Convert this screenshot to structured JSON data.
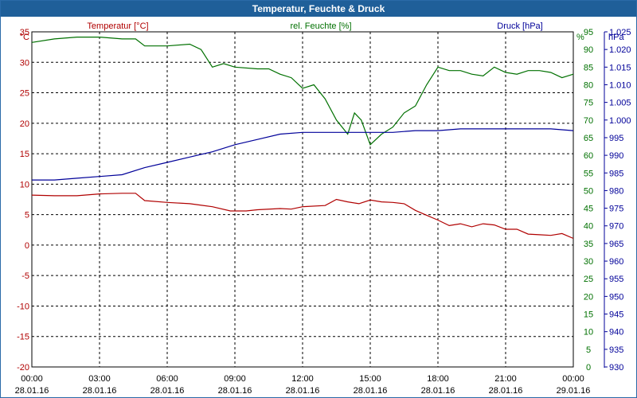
{
  "window": {
    "title": "Temperatur, Feuchte & Druck"
  },
  "chart_data": {
    "type": "line",
    "title": "Temperatur, Feuchte & Druck",
    "grid": true,
    "x_ticks": [
      {
        "time": "00:00",
        "date": "28.01.16"
      },
      {
        "time": "03:00",
        "date": "28.01.16"
      },
      {
        "time": "06:00",
        "date": "28.01.16"
      },
      {
        "time": "09:00",
        "date": "28.01.16"
      },
      {
        "time": "12:00",
        "date": "28.01.16"
      },
      {
        "time": "15:00",
        "date": "28.01.16"
      },
      {
        "time": "18:00",
        "date": "28.01.16"
      },
      {
        "time": "21:00",
        "date": "28.01.16"
      },
      {
        "time": "00:00",
        "date": "29.01.16"
      }
    ],
    "axes": {
      "temperature": {
        "label": "Temperatur [°C]",
        "unit": "°C",
        "min": -20,
        "max": 35,
        "ticks": [
          35,
          30,
          25,
          20,
          15,
          10,
          5,
          0,
          -5,
          -10,
          -15,
          -20
        ],
        "color": "#b00000"
      },
      "humidity": {
        "label": "rel. Feuchte [%]",
        "unit": "%",
        "min": 0,
        "max": 95,
        "ticks": [
          95,
          90,
          85,
          80,
          75,
          70,
          65,
          60,
          55,
          50,
          45,
          40,
          35,
          30,
          25,
          20,
          15,
          10,
          5,
          0
        ],
        "color": "#007000"
      },
      "pressure": {
        "label": "Druck [hPa]",
        "unit": "hPa",
        "min": 930,
        "max": 1025,
        "ticks": [
          "1.025",
          "1.020",
          "1.015",
          "1.010",
          "1.005",
          "1.000",
          "995",
          "990",
          "985",
          "980",
          "975",
          "970",
          "965",
          "960",
          "955",
          "950",
          "945",
          "940",
          "935",
          "930"
        ],
        "color": "#000099"
      }
    },
    "series": [
      {
        "name": "Temperatur [°C]",
        "axis": "temperature",
        "color": "#b00000",
        "points": [
          [
            0,
            8.2
          ],
          [
            1,
            8.1
          ],
          [
            2,
            8.1
          ],
          [
            3,
            8.4
          ],
          [
            4,
            8.5
          ],
          [
            4.6,
            8.5
          ],
          [
            5,
            7.3
          ],
          [
            6,
            7
          ],
          [
            7,
            6.8
          ],
          [
            8,
            6.3
          ],
          [
            8.8,
            5.6
          ],
          [
            9.5,
            5.6
          ],
          [
            10,
            5.8
          ],
          [
            11,
            6
          ],
          [
            11.5,
            5.9
          ],
          [
            12,
            6.3
          ],
          [
            13,
            6.5
          ],
          [
            13.5,
            7.5
          ],
          [
            14,
            7.1
          ],
          [
            14.5,
            6.8
          ],
          [
            15,
            7.4
          ],
          [
            15.5,
            7.1
          ],
          [
            16,
            7
          ],
          [
            16.5,
            6.8
          ],
          [
            17,
            5.7
          ],
          [
            17.5,
            4.9
          ],
          [
            18,
            4.1
          ],
          [
            18.5,
            3.2
          ],
          [
            19,
            3.5
          ],
          [
            19.5,
            3
          ],
          [
            20,
            3.5
          ],
          [
            20.5,
            3.3
          ],
          [
            21,
            2.6
          ],
          [
            21.5,
            2.6
          ],
          [
            22,
            1.8
          ],
          [
            22.5,
            1.7
          ],
          [
            23,
            1.6
          ],
          [
            23.5,
            1.9
          ],
          [
            24,
            1.1
          ]
        ]
      },
      {
        "name": "rel. Feuchte [%]",
        "axis": "humidity",
        "color": "#007000",
        "points": [
          [
            0,
            92
          ],
          [
            1,
            93
          ],
          [
            2,
            93.5
          ],
          [
            3,
            93.5
          ],
          [
            4,
            93
          ],
          [
            4.6,
            93
          ],
          [
            5,
            91
          ],
          [
            6,
            91
          ],
          [
            7,
            91.5
          ],
          [
            7.5,
            90
          ],
          [
            8,
            85
          ],
          [
            8.5,
            86
          ],
          [
            9,
            85
          ],
          [
            10,
            84.5
          ],
          [
            10.5,
            84.5
          ],
          [
            11,
            83
          ],
          [
            11.5,
            82
          ],
          [
            12,
            79
          ],
          [
            12.5,
            80
          ],
          [
            13,
            76
          ],
          [
            13.5,
            70
          ],
          [
            14,
            66
          ],
          [
            14.3,
            72
          ],
          [
            14.6,
            70
          ],
          [
            15,
            63
          ],
          [
            15.5,
            66
          ],
          [
            16,
            68
          ],
          [
            16.5,
            72
          ],
          [
            17,
            74
          ],
          [
            17.5,
            80
          ],
          [
            18,
            85
          ],
          [
            18.5,
            84
          ],
          [
            19,
            84
          ],
          [
            19.5,
            83
          ],
          [
            20,
            82.5
          ],
          [
            20.5,
            85
          ],
          [
            21,
            83.5
          ],
          [
            21.5,
            83
          ],
          [
            22,
            84
          ],
          [
            22.5,
            84
          ],
          [
            23,
            83.5
          ],
          [
            23.5,
            82
          ],
          [
            24,
            83
          ]
        ]
      },
      {
        "name": "Druck [hPa]",
        "axis": "pressure",
        "color": "#000099",
        "points": [
          [
            0,
            983
          ],
          [
            1,
            983
          ],
          [
            2,
            983.5
          ],
          [
            3,
            984
          ],
          [
            4,
            984.5
          ],
          [
            5,
            986.5
          ],
          [
            6,
            988
          ],
          [
            7,
            989.5
          ],
          [
            8,
            991
          ],
          [
            9,
            993
          ],
          [
            10,
            994.5
          ],
          [
            11,
            996
          ],
          [
            12,
            996.5
          ],
          [
            13,
            996.5
          ],
          [
            14,
            996.5
          ],
          [
            15,
            996.5
          ],
          [
            16,
            996.5
          ],
          [
            17,
            997
          ],
          [
            18,
            997
          ],
          [
            19,
            997.5
          ],
          [
            20,
            997.5
          ],
          [
            21,
            997.5
          ],
          [
            22,
            997.5
          ],
          [
            23,
            997.5
          ],
          [
            24,
            997
          ]
        ]
      }
    ]
  }
}
